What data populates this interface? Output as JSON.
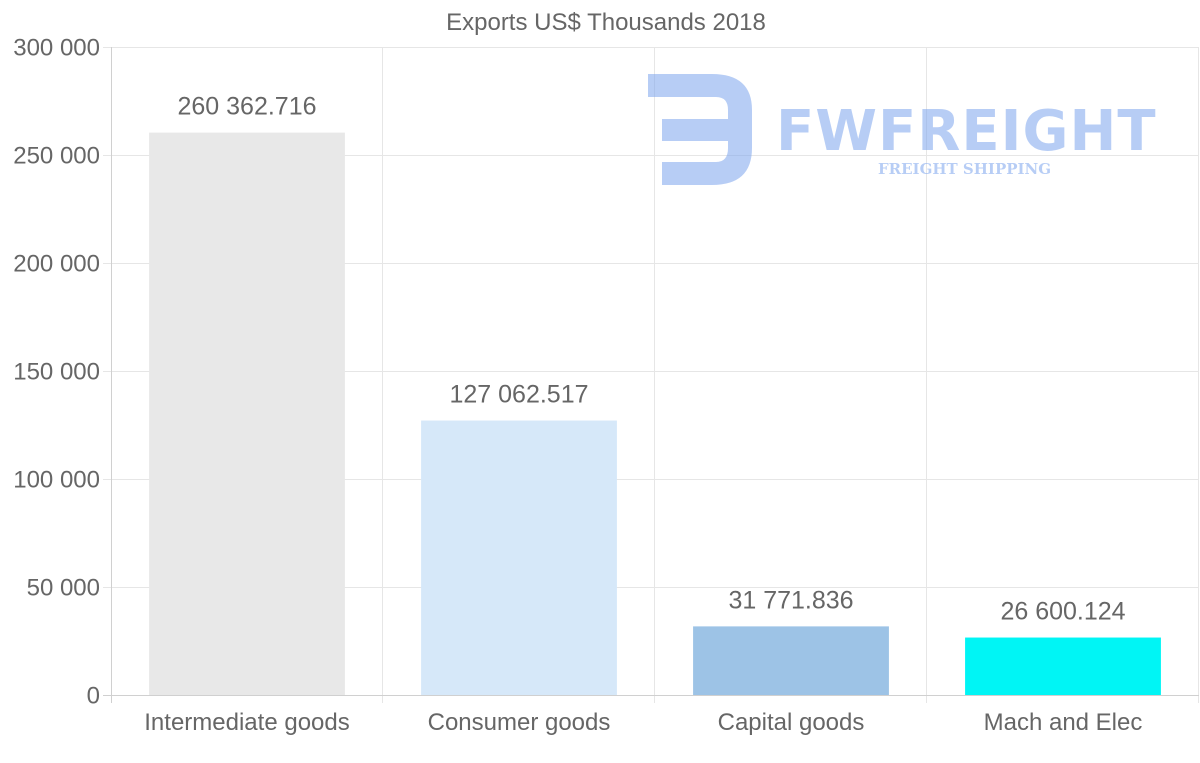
{
  "chart_data": {
    "type": "bar",
    "title": "Exports US$ Thousands 2018",
    "categories": [
      "Intermediate goods",
      "Consumer goods",
      "Capital goods",
      "Mach and Elec"
    ],
    "values": [
      260362.716,
      127062.517,
      31771.836,
      26600.124
    ],
    "value_labels": [
      "260 362.716",
      "127 062.517",
      "31 771.836",
      "26 600.124"
    ],
    "bar_colors": [
      "#e8e8e8",
      "#d6e8f9",
      "#9dc3e6",
      "#00f5f5"
    ],
    "ylim": [
      0,
      300000
    ],
    "y_ticks": [
      0,
      50000,
      100000,
      150000,
      200000,
      250000,
      300000
    ],
    "y_tick_labels": [
      "0",
      "50 000",
      "100 000",
      "150 000",
      "200 000",
      "250 000",
      "300 000"
    ],
    "xlabel": "",
    "ylabel": "",
    "grid": true,
    "legend": "none"
  },
  "watermark": {
    "brand": "FWFREIGHT",
    "tagline": "FREIGHT SHIPPING",
    "color": "#7ea6ee"
  }
}
